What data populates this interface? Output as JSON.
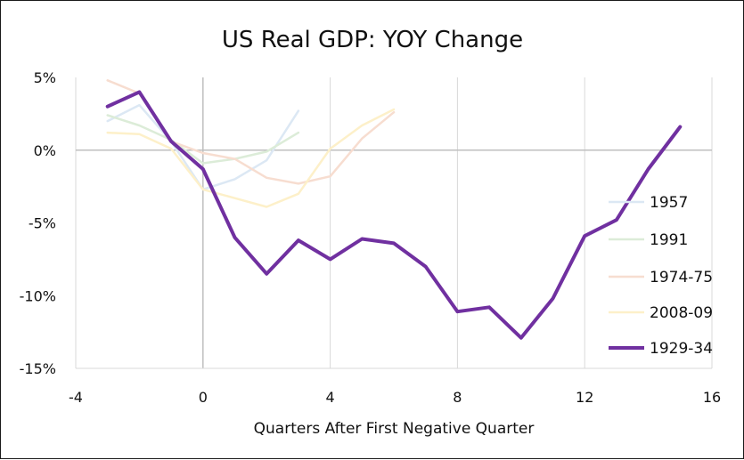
{
  "chart_data": {
    "type": "line",
    "title": "US Real GDP: YOY Change",
    "xlabel": "Quarters After First Negative Quarter",
    "ylabel": "",
    "xlim": [
      -4,
      16
    ],
    "ylim": [
      -15,
      5
    ],
    "x_ticks": [
      -4,
      0,
      4,
      8,
      12,
      16
    ],
    "x_tick_labels": [
      "-4",
      "0",
      "4",
      "8",
      "12",
      "16"
    ],
    "y_ticks": [
      5,
      0,
      -5,
      -10,
      -15
    ],
    "y_tick_labels": [
      "5%",
      "0%",
      "-5%",
      "-10%",
      "-15%"
    ],
    "grid": "vertical",
    "legend": "right",
    "series": [
      {
        "name": "1957",
        "color": "#dce8f4",
        "width": 2.5,
        "points": [
          [
            -3,
            2.0
          ],
          [
            -2,
            3.1
          ],
          [
            -1,
            0.6
          ],
          [
            0,
            -2.7
          ],
          [
            1,
            -2.0
          ],
          [
            2,
            -0.7
          ],
          [
            3,
            2.7
          ]
        ]
      },
      {
        "name": "1991",
        "color": "#dcecd8",
        "width": 2.5,
        "points": [
          [
            -3,
            2.4
          ],
          [
            -2,
            1.7
          ],
          [
            -1,
            0.7
          ],
          [
            0,
            -0.9
          ],
          [
            1,
            -0.6
          ],
          [
            2,
            -0.1
          ],
          [
            3,
            1.2
          ]
        ]
      },
      {
        "name": "1974-75",
        "color": "#f7ddd0",
        "width": 2.5,
        "points": [
          [
            -3,
            4.8
          ],
          [
            -2,
            3.9
          ],
          [
            -1,
            0.6
          ],
          [
            0,
            -0.2
          ],
          [
            1,
            -0.6
          ],
          [
            2,
            -1.9
          ],
          [
            3,
            -2.3
          ],
          [
            4,
            -1.8
          ],
          [
            5,
            0.8
          ],
          [
            6,
            2.6
          ]
        ]
      },
      {
        "name": "2008-09",
        "color": "#fdf0c9",
        "width": 2.5,
        "points": [
          [
            -3,
            1.2
          ],
          [
            -2,
            1.1
          ],
          [
            -1,
            0.1
          ],
          [
            0,
            -2.7
          ],
          [
            1,
            -3.3
          ],
          [
            2,
            -3.9
          ],
          [
            3,
            -3.0
          ],
          [
            4,
            0.1
          ],
          [
            5,
            1.7
          ],
          [
            6,
            2.8
          ]
        ]
      },
      {
        "name": "1929-34",
        "color": "#7030a0",
        "width": 4,
        "points": [
          [
            -3,
            3.0
          ],
          [
            -2,
            4.0
          ],
          [
            -1,
            0.6
          ],
          [
            0,
            -1.3
          ],
          [
            1,
            -6.0
          ],
          [
            2,
            -8.5
          ],
          [
            3,
            -6.2
          ],
          [
            4,
            -7.5
          ],
          [
            5,
            -6.1
          ],
          [
            6,
            -6.4
          ],
          [
            7,
            -8.0
          ],
          [
            8,
            -11.1
          ],
          [
            9,
            -10.8
          ],
          [
            10,
            -12.9
          ],
          [
            11,
            -10.2
          ],
          [
            12,
            -5.9
          ],
          [
            13,
            -4.8
          ],
          [
            14,
            -1.3
          ],
          [
            15,
            1.6
          ]
        ]
      }
    ]
  }
}
